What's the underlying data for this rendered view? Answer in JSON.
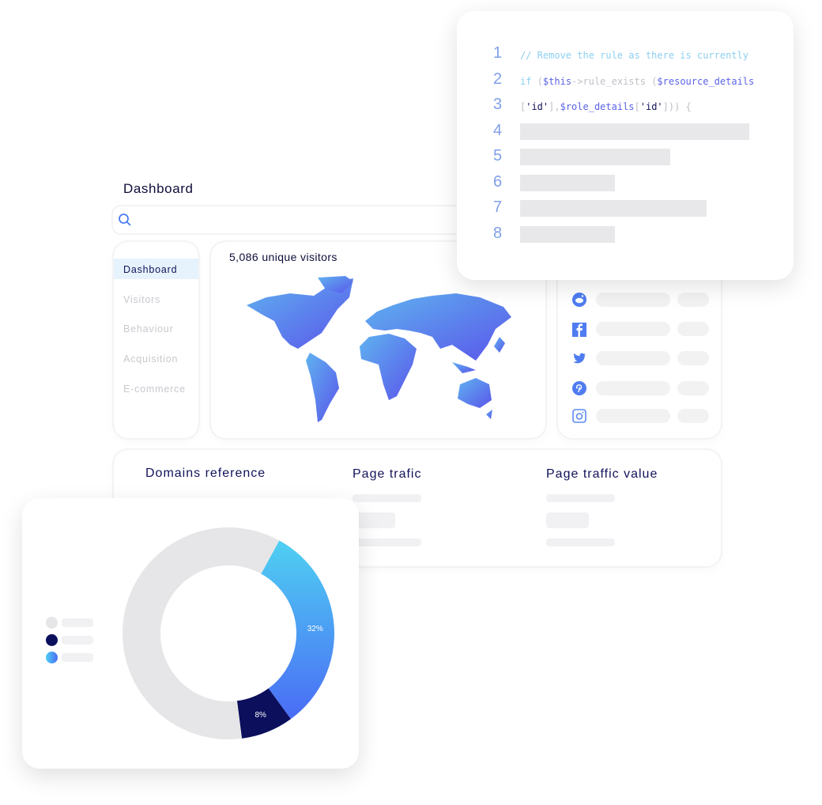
{
  "header": {
    "title": "Dashboard"
  },
  "search": {
    "placeholder": "",
    "icon": "search-icon"
  },
  "sidebar": {
    "items": [
      {
        "label": "Dashboard",
        "active": true
      },
      {
        "label": "Visitors"
      },
      {
        "label": "Behaviour"
      },
      {
        "label": "Acquisition"
      },
      {
        "label": "E-commerce"
      }
    ]
  },
  "map": {
    "title": "5,086 unique visitors"
  },
  "social": {
    "icons": [
      "reddit-icon",
      "facebook-icon",
      "twitter-icon",
      "pinterest-icon",
      "instagram-icon"
    ]
  },
  "stats": {
    "domains": "Domains reference",
    "page_trafic": "Page trafic",
    "page_traffic_value": "Page traffic value"
  },
  "code": {
    "lines": [
      {
        "n": "1",
        "parts": [
          {
            "t": "// Remove the rule as there is currently",
            "c": "#8ecff0"
          }
        ]
      },
      {
        "n": "2",
        "parts": [
          {
            "t": "if ",
            "c": "#8ecff0"
          },
          {
            "t": "(",
            "c": "#c0c0c8"
          },
          {
            "t": "$this",
            "c": "#5b63e8"
          },
          {
            "t": "->rule_exists (",
            "c": "#c0c0c8"
          },
          {
            "t": "$resource_details",
            "c": "#5b63e8"
          }
        ]
      },
      {
        "n": "3",
        "parts": [
          {
            "t": "[",
            "c": "#c0c0c8"
          },
          {
            "t": "'id'",
            "c": "#12125a"
          },
          {
            "t": "],",
            "c": "#c0c0c8"
          },
          {
            "t": "$role_details",
            "c": "#5b63e8"
          },
          {
            "t": "[",
            "c": "#c0c0c8"
          },
          {
            "t": "'id'",
            "c": "#12125a"
          },
          {
            "t": "])) {",
            "c": "#c0c0c8"
          }
        ]
      },
      {
        "n": "4"
      },
      {
        "n": "5"
      },
      {
        "n": "6"
      },
      {
        "n": "7"
      },
      {
        "n": "8"
      }
    ]
  },
  "donut": {
    "segments": [
      {
        "label": "60%",
        "value": 60,
        "color": "#e6e6e8"
      },
      {
        "label": "32%",
        "value": 32,
        "color": "#4a8cf5"
      },
      {
        "label": "8%",
        "value": 8,
        "color": "#0b0f5c"
      }
    ]
  },
  "colors": {
    "accent": "#5b63e8",
    "navy": "#0b0f5c",
    "cyan": "#4fd0f2"
  }
}
